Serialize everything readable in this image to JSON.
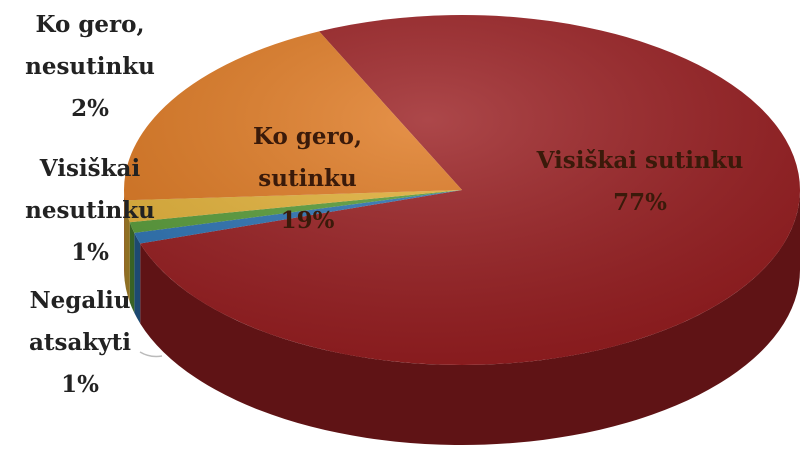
{
  "chart_data": {
    "type": "pie3d",
    "categories": [
      "Visiškai sutinku",
      "Negaliu atsakyti",
      "Visiškai nesutinku",
      "Ko gero, nesutinku",
      "Ko gero, sutinku"
    ],
    "values": [
      77,
      1,
      1,
      2,
      19
    ],
    "value_labels": [
      "77%",
      "1%",
      "1%",
      "2%",
      "19%"
    ],
    "colors": [
      "#9a1f22",
      "#2e75b6",
      "#5a9e3a",
      "#e6b43a",
      "#e07a22"
    ]
  }
}
